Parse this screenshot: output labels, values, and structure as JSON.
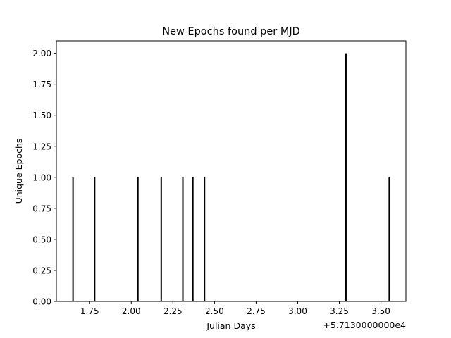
{
  "chart_data": {
    "type": "bar",
    "title": "New Epochs found per MJD",
    "xlabel": "Julian Days",
    "ylabel": "Unique Epochs",
    "x_offset_label": "+5.7130000000e4",
    "xlim": [
      1.55,
      3.65
    ],
    "ylim": [
      0,
      2.1
    ],
    "xticks": [
      1.75,
      2.0,
      2.25,
      2.5,
      2.75,
      3.0,
      3.25,
      3.5
    ],
    "xtick_labels": [
      "1.75",
      "2.00",
      "2.25",
      "2.50",
      "2.75",
      "3.00",
      "3.25",
      "3.50"
    ],
    "yticks": [
      0,
      0.25,
      0.5,
      0.75,
      1.0,
      1.25,
      1.5,
      1.75,
      2.0
    ],
    "ytick_labels": [
      "0.00",
      "0.25",
      "0.50",
      "0.75",
      "1.00",
      "1.25",
      "1.50",
      "1.75",
      "2.00"
    ],
    "grid": false,
    "bar_color": "#000000",
    "x": [
      1.65,
      1.78,
      2.04,
      2.18,
      2.31,
      2.37,
      2.44,
      3.29,
      3.55
    ],
    "values": [
      1,
      1,
      1,
      1,
      1,
      1,
      1,
      2,
      1
    ]
  }
}
